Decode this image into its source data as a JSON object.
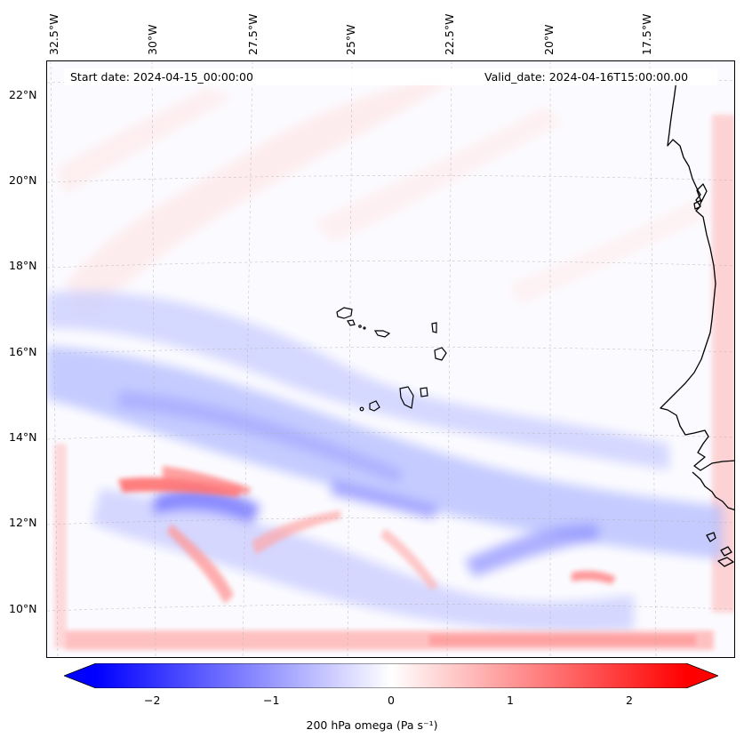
{
  "map": {
    "type": "filled-contour-map",
    "projection": "lambert-conformal",
    "region": "Eastern tropical Atlantic / West African coast",
    "longitude_labels": [
      "32.5°W",
      "30°W",
      "27.5°W",
      "25°W",
      "22.5°W",
      "20°W",
      "17.5°W"
    ],
    "latitude_labels": [
      "22°N",
      "20°N",
      "18°N",
      "16°N",
      "14°N",
      "12°N",
      "10°N"
    ],
    "gridlines": true,
    "coastlines": true
  },
  "info": {
    "start_date": "Start date: 2024-04-15_00:00:00",
    "valid_date": "Valid_date: 2024-04-16T15:00:00.00"
  },
  "colorbar": {
    "colormap": "bwr",
    "ticks": [
      "−2",
      "−1",
      "0",
      "1",
      "2"
    ],
    "tick_values": [
      -2,
      -1,
      0,
      1,
      2
    ],
    "range": [
      -2.6,
      2.6
    ],
    "extend": "both",
    "label": "200 hPa omega (Pa s⁻¹)",
    "colors": {
      "min": "#0000ff",
      "mid": "#ffffff",
      "max": "#ff0000"
    }
  }
}
